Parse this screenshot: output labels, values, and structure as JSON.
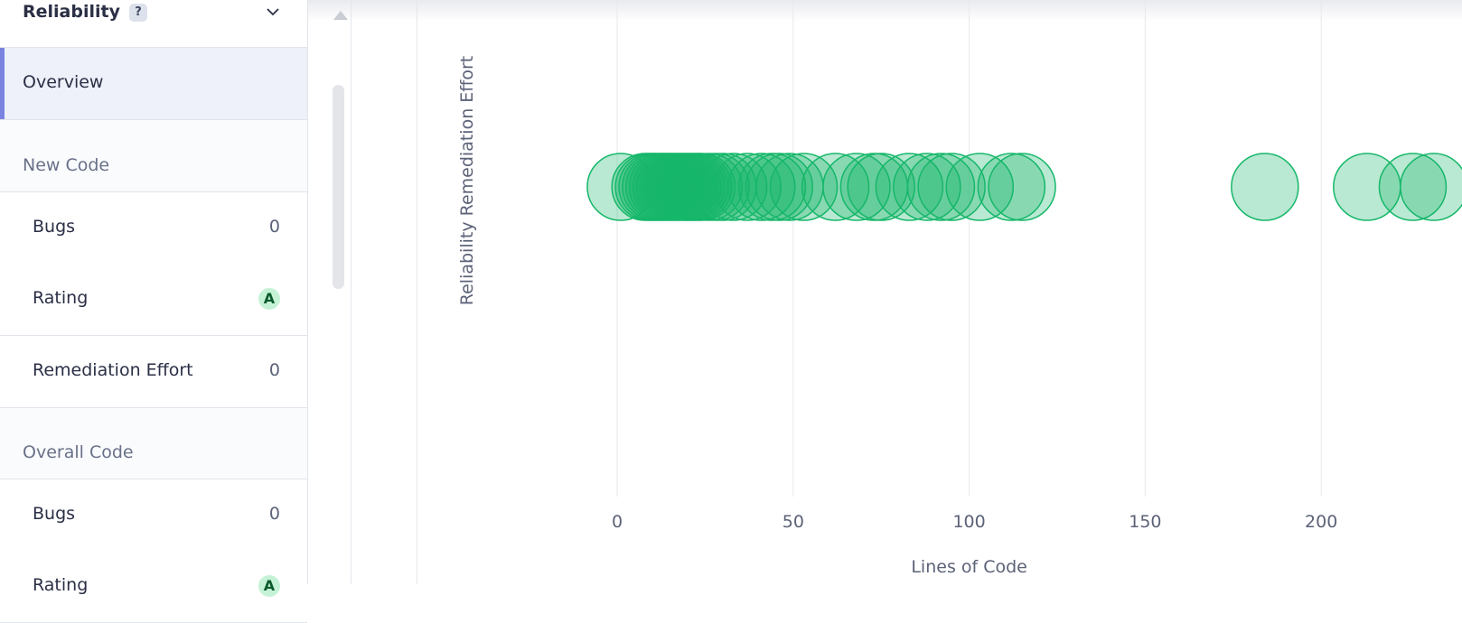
{
  "sidebar": {
    "title": "Reliability",
    "help_label": "?",
    "overview_label": "Overview",
    "new_code": {
      "heading": "New Code",
      "bugs_label": "Bugs",
      "bugs_value": "0",
      "rating_label": "Rating",
      "rating_value": "A",
      "effort_label": "Remediation Effort",
      "effort_value": "0"
    },
    "overall_code": {
      "heading": "Overall Code",
      "bugs_label": "Bugs",
      "bugs_value": "0",
      "rating_label": "Rating",
      "rating_value": "A"
    }
  },
  "colors": {
    "bubble": "#16b76a",
    "active_accent": "#7b83e0",
    "rating_bg": "#c5f2d6"
  },
  "icons": {
    "help": "question-icon",
    "collapse": "chevron-down-icon"
  },
  "chart_data": {
    "type": "scatter",
    "xlabel": "Lines of Code",
    "ylabel": "Reliability Remediation Effort",
    "x_ticks": [
      0,
      50,
      100,
      150,
      200
    ],
    "xlim": [
      -57,
      240
    ],
    "grid": true,
    "points": [
      {
        "x": 1,
        "y": 0
      },
      {
        "x": 8,
        "y": 0
      },
      {
        "x": 9,
        "y": 0
      },
      {
        "x": 10,
        "y": 0
      },
      {
        "x": 11,
        "y": 0
      },
      {
        "x": 12,
        "y": 0
      },
      {
        "x": 13,
        "y": 0
      },
      {
        "x": 14,
        "y": 0
      },
      {
        "x": 15,
        "y": 0
      },
      {
        "x": 16,
        "y": 0
      },
      {
        "x": 17,
        "y": 0
      },
      {
        "x": 18,
        "y": 0
      },
      {
        "x": 19,
        "y": 0
      },
      {
        "x": 20,
        "y": 0
      },
      {
        "x": 21,
        "y": 0
      },
      {
        "x": 22,
        "y": 0
      },
      {
        "x": 23,
        "y": 0
      },
      {
        "x": 24,
        "y": 0
      },
      {
        "x": 26,
        "y": 0
      },
      {
        "x": 28,
        "y": 0
      },
      {
        "x": 30,
        "y": 0
      },
      {
        "x": 33,
        "y": 0
      },
      {
        "x": 37,
        "y": 0
      },
      {
        "x": 41,
        "y": 0
      },
      {
        "x": 44,
        "y": 0
      },
      {
        "x": 46,
        "y": 0
      },
      {
        "x": 49,
        "y": 0
      },
      {
        "x": 53,
        "y": 0
      },
      {
        "x": 62,
        "y": 0
      },
      {
        "x": 68,
        "y": 0
      },
      {
        "x": 73,
        "y": 0
      },
      {
        "x": 75,
        "y": 0
      },
      {
        "x": 83,
        "y": 0
      },
      {
        "x": 88,
        "y": 0
      },
      {
        "x": 92,
        "y": 0
      },
      {
        "x": 95,
        "y": 0
      },
      {
        "x": 103,
        "y": 0
      },
      {
        "x": 112,
        "y": 0
      },
      {
        "x": 115,
        "y": 0
      },
      {
        "x": 184,
        "y": 0
      },
      {
        "x": 213,
        "y": 0
      },
      {
        "x": 226,
        "y": 0
      },
      {
        "x": 232,
        "y": 0
      }
    ]
  }
}
